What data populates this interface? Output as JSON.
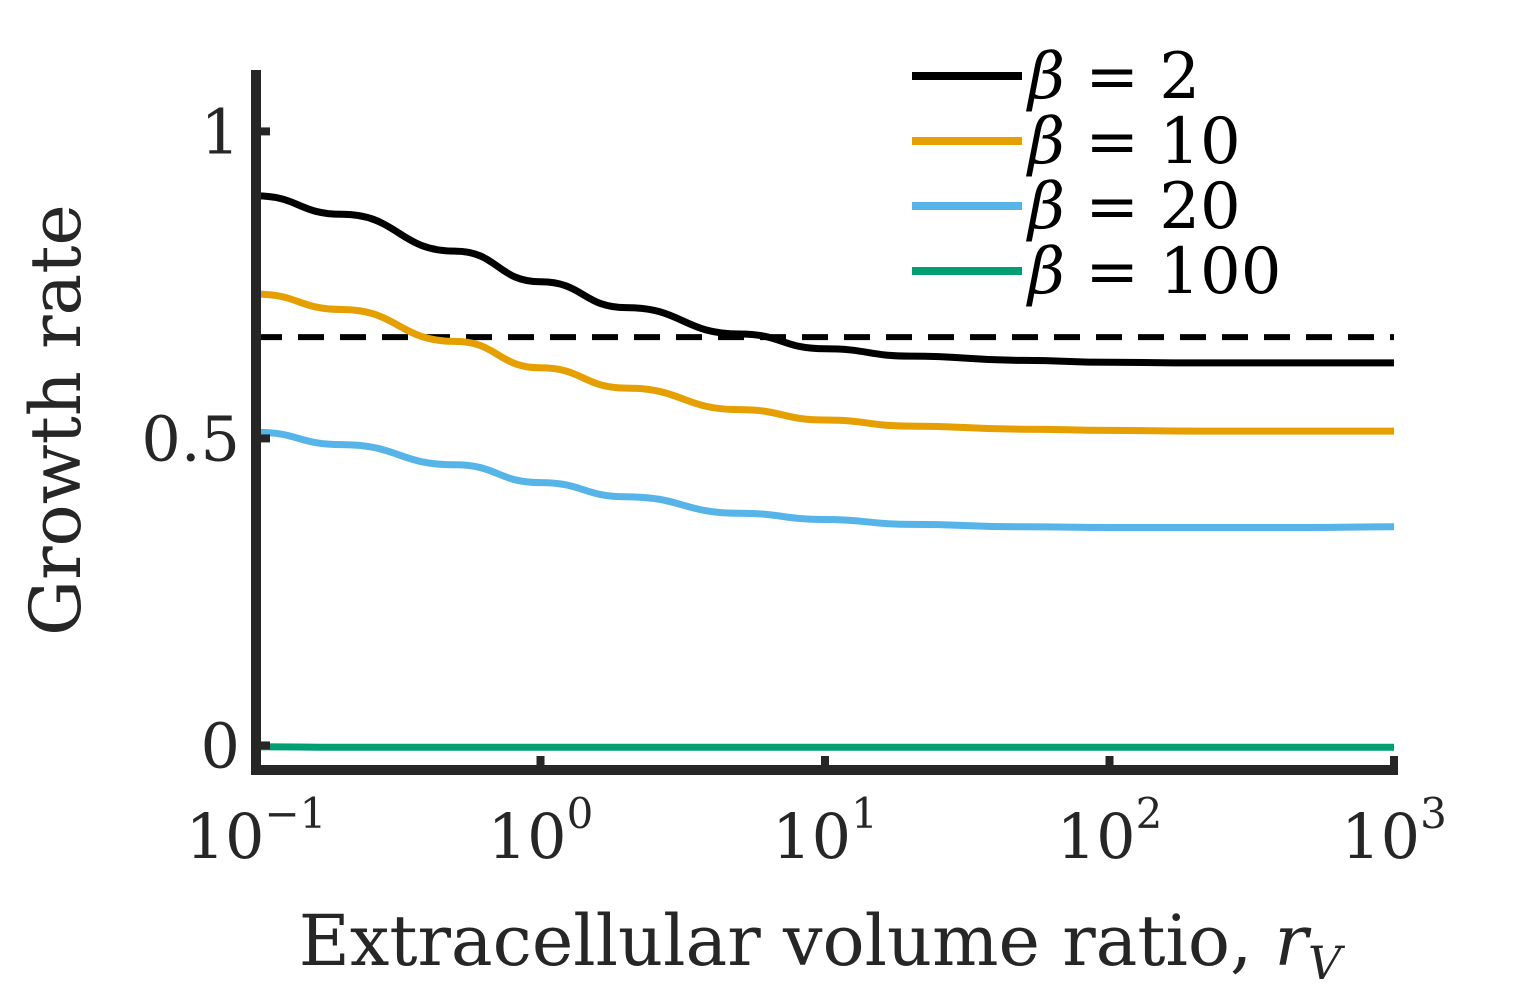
{
  "chart_data": {
    "type": "line",
    "title": "",
    "xlabel": "Extracellular volume ratio, ",
    "xlabel_symbol": "r",
    "xlabel_subscript": "V",
    "ylabel": "Growth rate",
    "xscale": "log",
    "xlim": [
      0.1,
      1000
    ],
    "ylim": [
      -0.04,
      1.1
    ],
    "grid": false,
    "legend_position": "top-right",
    "x_ticks": [
      {
        "value": 0.1,
        "base": "10",
        "exp": "−1"
      },
      {
        "value": 1,
        "base": "10",
        "exp": "0"
      },
      {
        "value": 10,
        "base": "10",
        "exp": "1"
      },
      {
        "value": 100,
        "base": "10",
        "exp": "2"
      },
      {
        "value": 1000,
        "base": "10",
        "exp": "3"
      }
    ],
    "y_ticks": [
      {
        "value": 0,
        "label": "0"
      },
      {
        "value": 0.5,
        "label": "0.5"
      },
      {
        "value": 1,
        "label": "1"
      }
    ],
    "reference_line": {
      "y": 0.665,
      "style": "dashed",
      "color": "#000000"
    },
    "x": [
      0.1,
      0.2,
      0.5,
      1,
      2,
      5,
      10,
      20,
      50,
      100,
      200,
      500,
      1000
    ],
    "series": [
      {
        "name": "β = 2",
        "legend_symbol": "β",
        "legend_value": "= 2",
        "color": "#000000",
        "values": [
          0.895,
          0.865,
          0.805,
          0.755,
          0.713,
          0.67,
          0.646,
          0.634,
          0.627,
          0.624,
          0.623,
          0.623,
          0.623
        ]
      },
      {
        "name": "β = 10",
        "legend_symbol": "β",
        "legend_value": "= 10",
        "color": "#E69F00",
        "values": [
          0.735,
          0.71,
          0.658,
          0.615,
          0.582,
          0.547,
          0.53,
          0.52,
          0.515,
          0.513,
          0.512,
          0.512,
          0.512
        ]
      },
      {
        "name": "β = 20",
        "legend_symbol": "β",
        "legend_value": "= 20",
        "color": "#56B4E9",
        "values": [
          0.51,
          0.49,
          0.457,
          0.428,
          0.405,
          0.378,
          0.368,
          0.36,
          0.356,
          0.355,
          0.355,
          0.355,
          0.356
        ]
      },
      {
        "name": "β = 100",
        "legend_symbol": "β",
        "legend_value": "= 100",
        "color": "#009E73",
        "values": [
          -0.002,
          -0.003,
          -0.003,
          -0.003,
          -0.003,
          -0.003,
          -0.003,
          -0.003,
          -0.003,
          -0.003,
          -0.003,
          -0.003,
          -0.003
        ]
      }
    ]
  }
}
